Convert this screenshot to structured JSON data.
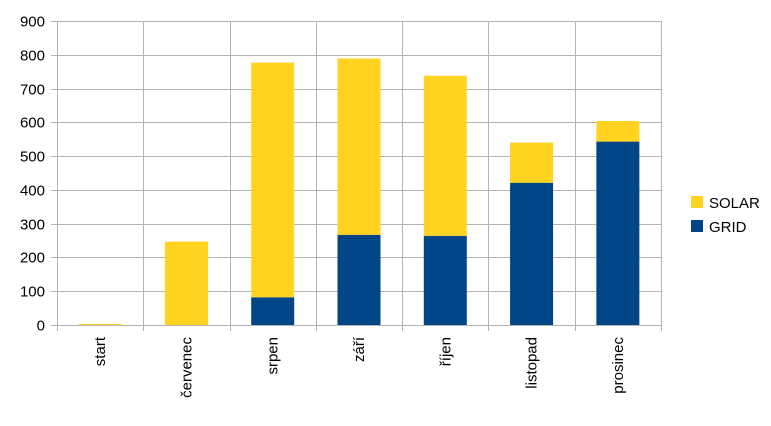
{
  "chart_data": {
    "type": "bar",
    "stacked": true,
    "title": "",
    "xlabel": "",
    "ylabel": "",
    "ylim": [
      0,
      900
    ],
    "yticks": [
      0,
      100,
      200,
      300,
      400,
      500,
      600,
      700,
      800,
      900
    ],
    "grid": true,
    "legend_position": "right",
    "categories": [
      "start",
      "červenec",
      "srpen",
      "září",
      "říjen",
      "listopad",
      "prosinec"
    ],
    "series": [
      {
        "name": "GRID",
        "color": "#004586",
        "values": [
          0,
          0,
          82,
          267,
          264,
          421,
          543
        ]
      },
      {
        "name": "SOLAR",
        "color": "#FFD320",
        "values": [
          3,
          247,
          695,
          522,
          474,
          119,
          61
        ]
      }
    ]
  }
}
